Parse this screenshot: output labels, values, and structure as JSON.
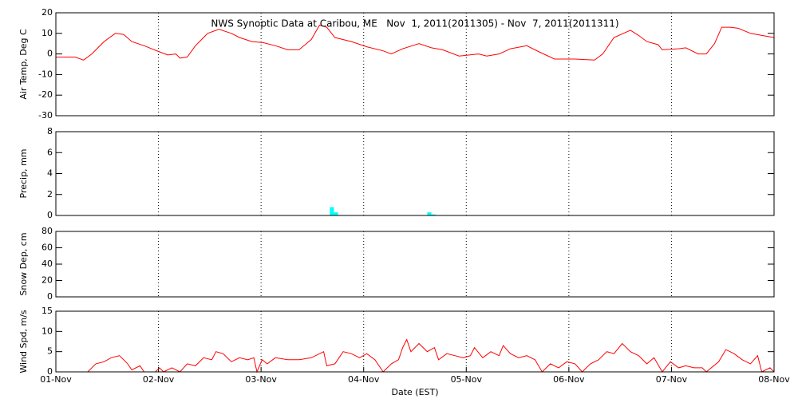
{
  "chart_data": [
    {
      "type": "line",
      "title": "NWS Synoptic Data at Caribou, ME   Nov  1, 2011(2011305) - Nov  7, 2011(2011311)",
      "ylabel": "Air Temp, Deg C",
      "xlim": [
        0,
        7
      ],
      "xticks": [
        0,
        1,
        2,
        3,
        4,
        5,
        6,
        7
      ],
      "ylim": [
        -30,
        20
      ],
      "yticks": [
        -30,
        -20,
        -10,
        0,
        10,
        20
      ],
      "grid": true,
      "series": [
        {
          "name": "Air Temp",
          "color": "#ff0000",
          "x": [
            0,
            0.19,
            0.27,
            0.35,
            0.47,
            0.58,
            0.66,
            0.74,
            0.86,
            1.01,
            1.09,
            1.17,
            1.21,
            1.28,
            1.36,
            1.48,
            1.59,
            1.71,
            1.79,
            1.91,
            2.02,
            2.14,
            2.26,
            2.37,
            2.49,
            2.57,
            2.64,
            2.72,
            2.88,
            3.03,
            3.19,
            3.27,
            3.38,
            3.54,
            3.66,
            3.77,
            3.93,
            4.12,
            4.2,
            4.32,
            4.43,
            4.59,
            4.71,
            4.86,
            5.06,
            5.25,
            5.33,
            5.44,
            5.6,
            5.68,
            5.76,
            5.87,
            5.91,
            6.07,
            6.14,
            6.26,
            6.34,
            6.42,
            6.49,
            6.57,
            6.65,
            6.77,
            6.88,
            7
          ],
          "values": [
            -1.5,
            -1.5,
            -3,
            0,
            6,
            10,
            9.5,
            6,
            4,
            1,
            -0.5,
            0,
            -2,
            -1.5,
            4,
            10,
            12,
            10,
            8,
            6,
            5.5,
            4,
            2,
            2,
            7,
            14,
            13,
            8,
            6,
            3.5,
            1.5,
            0,
            2.5,
            5,
            3,
            2,
            -1,
            0,
            -1,
            0,
            2.5,
            4,
            1,
            -2.5,
            -2.5,
            -3,
            0,
            8,
            11.5,
            9,
            6,
            4.5,
            2,
            2.5,
            3,
            0,
            0,
            5,
            13,
            13,
            12.5,
            10,
            9,
            8
          ]
        }
      ]
    },
    {
      "type": "bar",
      "ylabel": "Precip, mm",
      "xlim": [
        0,
        7
      ],
      "xticks": [
        0,
        1,
        2,
        3,
        4,
        5,
        6,
        7
      ],
      "ylim": [
        0,
        8
      ],
      "yticks": [
        0,
        2,
        4,
        6,
        8
      ],
      "grid": true,
      "bar_width": 0.04,
      "series": [
        {
          "name": "Precip",
          "color": "#00ffff",
          "x": [
            2.69,
            2.73,
            3.64,
            3.68
          ],
          "values": [
            0.8,
            0.3,
            0.3,
            0.1
          ]
        }
      ]
    },
    {
      "type": "line",
      "ylabel": "Snow Dep, cm",
      "xlim": [
        0,
        7
      ],
      "xticks": [
        0,
        1,
        2,
        3,
        4,
        5,
        6,
        7
      ],
      "ylim": [
        0,
        80
      ],
      "yticks": [
        0,
        20,
        40,
        60,
        80
      ],
      "grid": true,
      "series": []
    },
    {
      "type": "line",
      "ylabel": "Wind Spd, m/s",
      "xlabel": "Date (EST)",
      "xlim": [
        0,
        7
      ],
      "xticks": [
        {
          "value": 0,
          "label": "01-Nov"
        },
        {
          "value": 1,
          "label": "02-Nov"
        },
        {
          "value": 2,
          "label": "03-Nov"
        },
        {
          "value": 3,
          "label": "04-Nov"
        },
        {
          "value": 4,
          "label": "05-Nov"
        },
        {
          "value": 5,
          "label": "06-Nov"
        },
        {
          "value": 6,
          "label": "07-Nov"
        },
        {
          "value": 7,
          "label": "08-Nov"
        }
      ],
      "ylim": [
        0,
        15
      ],
      "yticks": [
        0,
        5,
        10,
        15
      ],
      "grid": true,
      "series": [
        {
          "name": "Wind Spd",
          "color": "#ff0000",
          "x": [
            0,
            0.31,
            0.39,
            0.47,
            0.54,
            0.62,
            0.7,
            0.74,
            0.82,
            0.86,
            0.97,
            1.01,
            1.05,
            1.13,
            1.21,
            1.28,
            1.36,
            1.44,
            1.52,
            1.56,
            1.63,
            1.71,
            1.79,
            1.87,
            1.93,
            1.96,
            2.01,
            2.06,
            2.14,
            2.26,
            2.37,
            2.49,
            2.61,
            2.64,
            2.72,
            2.8,
            2.88,
            2.96,
            3.03,
            3.11,
            3.19,
            3.27,
            3.34,
            3.38,
            3.42,
            3.46,
            3.54,
            3.62,
            3.69,
            3.73,
            3.81,
            3.89,
            3.97,
            4.04,
            4.08,
            4.16,
            4.24,
            4.32,
            4.36,
            4.43,
            4.51,
            4.59,
            4.67,
            4.74,
            4.82,
            4.9,
            4.98,
            5.06,
            5.13,
            5.21,
            5.29,
            5.37,
            5.44,
            5.52,
            5.6,
            5.68,
            5.76,
            5.83,
            5.91,
            5.99,
            6.07,
            6.14,
            6.22,
            6.3,
            6.34,
            6.46,
            6.53,
            6.61,
            6.69,
            6.77,
            6.84,
            6.88,
            6.96,
            7
          ],
          "values": [
            0,
            0,
            2,
            2.5,
            3.5,
            4,
            2,
            0.5,
            1.5,
            0,
            0,
            1,
            0,
            1,
            0,
            2,
            1.5,
            3.5,
            3,
            5,
            4.5,
            2.5,
            3.5,
            3,
            3.5,
            0,
            3,
            2,
            3.5,
            3,
            3,
            3.5,
            5,
            1.5,
            2,
            5,
            4.5,
            3.5,
            4.5,
            3,
            0,
            2,
            3,
            6,
            8,
            5,
            7,
            5,
            6,
            3,
            4.5,
            4,
            3.5,
            4,
            6,
            3.5,
            5,
            4,
            6.5,
            4.5,
            3.5,
            4,
            3,
            0,
            2,
            1,
            2.5,
            2,
            0,
            2,
            3,
            5,
            4.5,
            7,
            5,
            4,
            2,
            3.5,
            0,
            2.5,
            1,
            1.5,
            1,
            1,
            0,
            2.5,
            5.5,
            4.5,
            3,
            2,
            4,
            0,
            1,
            0
          ]
        }
      ]
    }
  ]
}
